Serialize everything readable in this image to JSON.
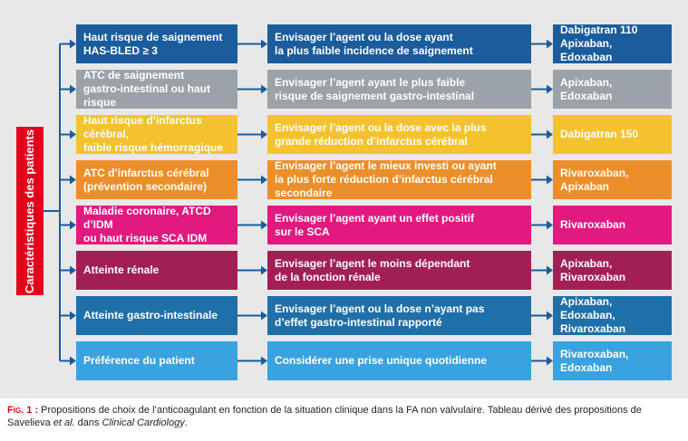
{
  "side_label": "Caractéristiques des patients",
  "colors": {
    "panel": "#e8e8e8",
    "side_label": "#e2001a",
    "connector": "#1a5c9c",
    "rows": [
      "#1a5c9c",
      "#9ba2a8",
      "#f5c22f",
      "#ec8f2a",
      "#e2197f",
      "#a21f56",
      "#1f6fa8",
      "#3aa2df"
    ]
  },
  "rows": [
    {
      "characteristic": "Haut risque de saignement\nHAS-BLED ≥ 3",
      "recommendation": "Envisager l’agent ou la dose ayant\nla plus faible incidence de saignement",
      "agents": "Dabigatran 110\nApixaban, Edoxaban"
    },
    {
      "characteristic": "ATC de saignement\ngastro-intestinal ou haut risque",
      "recommendation": "Envisager l’agent ayant le plus faible\nrisque de saignement gastro-intestinal",
      "agents": "Apixaban, Edoxaban"
    },
    {
      "characteristic": "Haut risque d’infarctus cérébral,\nfaible risque hémorragique",
      "recommendation": "Envisager l’agent ou la dose avec la plus\ngrande réduction d’infarctus cérébral",
      "agents": "Dabigatran 150"
    },
    {
      "characteristic": "ATC d’infarctus cérébral\n(prévention secondaire)",
      "recommendation": "Envisager l’agent le mieux investi ou ayant\nla plus forte réduction d’infarctus cérébral secondaire",
      "agents": "Rivaroxaban,\nApixaban"
    },
    {
      "characteristic": "Maladie coronaire, ATCD d’IDM\nou haut risque SCA IDM",
      "recommendation": "Envisager l’agent ayant un effet positif\nsur le SCA",
      "agents": "Rivaroxaban"
    },
    {
      "characteristic": "Atteinte rénale",
      "recommendation": "Envisager l’agent le moins dépendant\nde la fonction rénale",
      "agents": "Apixaban,\nRivaroxaban"
    },
    {
      "characteristic": "Atteinte gastro-intestinale",
      "recommendation": "Envisager l’agent ou la dose n’ayant pas\nd’effet gastro-intestinal rapporté",
      "agents": "Apixaban, Edoxaban,\nRivaroxaban"
    },
    {
      "characteristic": "Préférence du patient",
      "recommendation": "Considérer une prise unique quotidienne",
      "agents": "Rivaroxaban,\nEdoxaban"
    }
  ],
  "caption": {
    "prefix": "Fig. 1 :",
    "text": " Propositions de choix de l’anticoagulant en fonction de la situation clinique dans la FA non valvulaire. Tableau dérivé des propositions de Savelieva ",
    "italic1": "et al.",
    "text2": " dans ",
    "italic2": "Clinical Cardiology",
    "text3": "."
  }
}
